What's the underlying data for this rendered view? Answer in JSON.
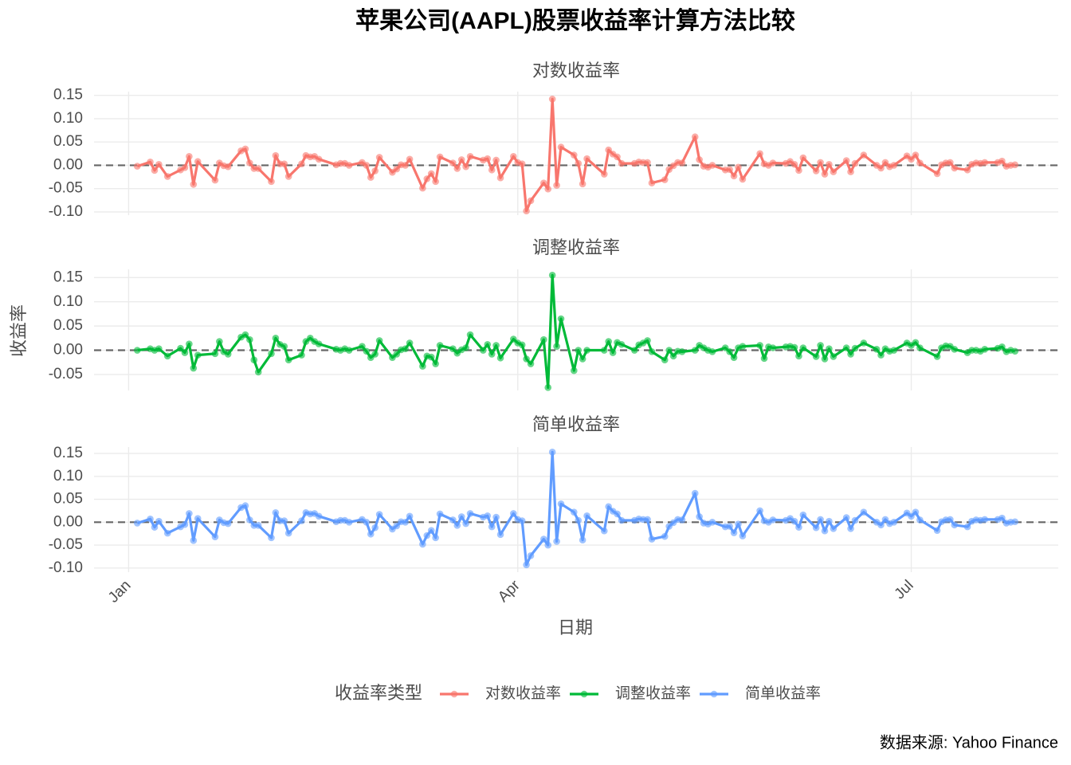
{
  "chart_data": {
    "type": "line",
    "title": "苹果公司(AAPL)股票收益率计算方法比较",
    "x_label": "日期",
    "y_label": "收益率",
    "legend_title": "收益率类型",
    "caption": "数据来源: Yahoo Finance",
    "hline": 0,
    "grid": true,
    "legend": "bottom",
    "facets": true,
    "xlim": [
      "2024-12-24",
      "2025-08-04"
    ],
    "xticks": [
      {
        "value": "2025-01-01",
        "label": "Jan"
      },
      {
        "value": "2025-04-01",
        "label": "Apr"
      },
      {
        "value": "2025-07-01",
        "label": "Jul"
      }
    ],
    "x": [
      "2025-01-03",
      "2025-01-06",
      "2025-01-07",
      "2025-01-08",
      "2025-01-10",
      "2025-01-13",
      "2025-01-14",
      "2025-01-15",
      "2025-01-16",
      "2025-01-17",
      "2025-01-21",
      "2025-01-22",
      "2025-01-23",
      "2025-01-24",
      "2025-01-27",
      "2025-01-28",
      "2025-01-29",
      "2025-01-30",
      "2025-01-31",
      "2025-02-03",
      "2025-02-04",
      "2025-02-05",
      "2025-02-06",
      "2025-02-07",
      "2025-02-10",
      "2025-02-11",
      "2025-02-12",
      "2025-02-13",
      "2025-02-14",
      "2025-02-18",
      "2025-02-19",
      "2025-02-20",
      "2025-02-21",
      "2025-02-24",
      "2025-02-25",
      "2025-02-26",
      "2025-02-27",
      "2025-02-28",
      "2025-03-03",
      "2025-03-04",
      "2025-03-05",
      "2025-03-06",
      "2025-03-07",
      "2025-03-10",
      "2025-03-11",
      "2025-03-12",
      "2025-03-13",
      "2025-03-14",
      "2025-03-17",
      "2025-03-18",
      "2025-03-19",
      "2025-03-20",
      "2025-03-21",
      "2025-03-24",
      "2025-03-25",
      "2025-03-26",
      "2025-03-27",
      "2025-03-28",
      "2025-03-31",
      "2025-04-01",
      "2025-04-02",
      "2025-04-03",
      "2025-04-04",
      "2025-04-07",
      "2025-04-08",
      "2025-04-09",
      "2025-04-10",
      "2025-04-11",
      "2025-04-14",
      "2025-04-15",
      "2025-04-16",
      "2025-04-17",
      "2025-04-21",
      "2025-04-22",
      "2025-04-23",
      "2025-04-24",
      "2025-04-25",
      "2025-04-28",
      "2025-04-29",
      "2025-04-30",
      "2025-05-01",
      "2025-05-02",
      "2025-05-05",
      "2025-05-06",
      "2025-05-07",
      "2025-05-08",
      "2025-05-09",
      "2025-05-12",
      "2025-05-13",
      "2025-05-14",
      "2025-05-15",
      "2025-05-16",
      "2025-05-19",
      "2025-05-20",
      "2025-05-21",
      "2025-05-22",
      "2025-05-23",
      "2025-05-27",
      "2025-05-28",
      "2025-05-29",
      "2025-05-30",
      "2025-06-02",
      "2025-06-03",
      "2025-06-04",
      "2025-06-05",
      "2025-06-06",
      "2025-06-09",
      "2025-06-10",
      "2025-06-11",
      "2025-06-12",
      "2025-06-13",
      "2025-06-16",
      "2025-06-17",
      "2025-06-18",
      "2025-06-20",
      "2025-06-23",
      "2025-06-24",
      "2025-06-25",
      "2025-06-26",
      "2025-06-27",
      "2025-06-30",
      "2025-07-01",
      "2025-07-02",
      "2025-07-03",
      "2025-07-07",
      "2025-07-08",
      "2025-07-09",
      "2025-07-10",
      "2025-07-11",
      "2025-07-14",
      "2025-07-15",
      "2025-07-16",
      "2025-07-17",
      "2025-07-18",
      "2025-07-21",
      "2025-07-22",
      "2025-07-23",
      "2025-07-24",
      "2025-07-25"
    ],
    "series": [
      {
        "name": "对数收益率",
        "color": "#f8766d",
        "ylim": [
          -0.107,
          0.158
        ],
        "yticks": [
          {
            "value": -0.1,
            "label": "-0.10"
          },
          {
            "value": -0.05,
            "label": "-0.05"
          },
          {
            "value": 0,
            "label": "0.00"
          },
          {
            "value": 0.05,
            "label": "0.05"
          },
          {
            "value": 0.1,
            "label": "0.10"
          },
          {
            "value": 0.15,
            "label": "0.15"
          }
        ],
        "values": [
          -0.002,
          0.007,
          -0.011,
          0.002,
          -0.024,
          -0.01,
          -0.005,
          0.019,
          -0.041,
          0.008,
          -0.032,
          0.005,
          -0.001,
          -0.003,
          0.031,
          0.035,
          0.005,
          -0.007,
          -0.007,
          -0.035,
          0.021,
          0.003,
          0.003,
          -0.024,
          0.003,
          0.021,
          0.018,
          0.019,
          0.013,
          0.001,
          0.004,
          0.004,
          0.0,
          0.006,
          0.0,
          -0.026,
          -0.012,
          0.017,
          -0.015,
          -0.008,
          0.001,
          0.0,
          0.013,
          -0.049,
          -0.029,
          -0.018,
          -0.035,
          0.018,
          0.005,
          -0.007,
          0.012,
          -0.003,
          0.019,
          0.011,
          0.014,
          -0.01,
          0.011,
          -0.027,
          0.019,
          0.006,
          0.003,
          -0.098,
          -0.076,
          -0.038,
          -0.051,
          0.142,
          -0.043,
          0.039,
          0.022,
          0.004,
          -0.04,
          0.014,
          -0.019,
          0.033,
          0.024,
          0.018,
          0.004,
          0.004,
          0.007,
          0.006,
          0.006,
          -0.038,
          -0.031,
          -0.009,
          -0.001,
          0.006,
          0.005,
          0.061,
          0.012,
          -0.002,
          -0.004,
          0.0,
          -0.01,
          -0.009,
          -0.023,
          -0.004,
          -0.03,
          0.025,
          0.003,
          0.0,
          0.005,
          0.004,
          0.008,
          0.002,
          -0.011,
          0.016,
          -0.012,
          0.006,
          -0.019,
          0.002,
          -0.014,
          0.01,
          -0.014,
          0.004,
          0.022,
          0.0,
          -0.006,
          0.006,
          -0.003,
          0.0,
          0.02,
          0.013,
          0.022,
          0.005,
          -0.018,
          0.001,
          0.005,
          0.006,
          -0.006,
          -0.01,
          0.002,
          0.005,
          0.004,
          0.006,
          0.006,
          0.009,
          -0.002,
          0.0,
          0.001
        ]
      },
      {
        "name": "调整收益率",
        "color": "#00ba38",
        "ylim": [
          -0.083,
          0.167
        ],
        "yticks": [
          {
            "value": -0.05,
            "label": "-0.05"
          },
          {
            "value": 0,
            "label": "0.00"
          },
          {
            "value": 0.05,
            "label": "0.05"
          },
          {
            "value": 0.1,
            "label": "0.10"
          },
          {
            "value": 0.15,
            "label": "0.15"
          }
        ],
        "values": [
          0.0,
          0.003,
          0.0,
          0.003,
          -0.012,
          0.004,
          -0.005,
          0.013,
          -0.037,
          -0.01,
          -0.007,
          0.018,
          -0.003,
          -0.008,
          0.027,
          0.032,
          0.022,
          -0.02,
          -0.045,
          -0.007,
          0.025,
          0.012,
          0.008,
          -0.02,
          -0.01,
          0.018,
          0.025,
          0.018,
          0.013,
          0.002,
          0.0,
          0.003,
          0.0,
          0.008,
          -0.002,
          -0.015,
          -0.008,
          0.02,
          -0.015,
          -0.008,
          0.001,
          0.003,
          0.015,
          -0.033,
          -0.012,
          -0.014,
          -0.028,
          0.01,
          0.003,
          -0.006,
          0.001,
          0.005,
          0.032,
          0.0,
          0.012,
          -0.008,
          0.01,
          -0.016,
          0.023,
          0.015,
          0.011,
          -0.018,
          -0.028,
          0.022,
          -0.077,
          0.155,
          0.008,
          0.065,
          -0.042,
          0.0,
          -0.018,
          0.0,
          0.0,
          0.018,
          -0.005,
          0.016,
          0.012,
          0.0,
          0.011,
          0.015,
          0.02,
          -0.003,
          -0.02,
          0.0,
          -0.012,
          -0.002,
          -0.003,
          0.0,
          0.01,
          0.005,
          0.0,
          -0.003,
          0.005,
          -0.003,
          -0.015,
          0.005,
          0.008,
          0.01,
          -0.017,
          0.007,
          0.005,
          0.007,
          0.008,
          0.006,
          -0.012,
          0.005,
          -0.013,
          0.01,
          -0.018,
          0.003,
          -0.013,
          0.005,
          -0.008,
          0.004,
          0.015,
          0.002,
          -0.01,
          0.003,
          -0.002,
          0.0,
          0.015,
          0.01,
          0.016,
          0.005,
          -0.013,
          0.005,
          0.009,
          0.008,
          0.002,
          -0.005,
          0.0,
          0.0,
          -0.002,
          0.002,
          0.004,
          0.007,
          -0.003,
          0.0,
          -0.002
        ]
      },
      {
        "name": "简单收益率",
        "color": "#619cff",
        "ylim": [
          -0.109,
          0.164
        ],
        "yticks": [
          {
            "value": -0.1,
            "label": "-0.10"
          },
          {
            "value": -0.05,
            "label": "-0.05"
          },
          {
            "value": 0,
            "label": "0.00"
          },
          {
            "value": 0.05,
            "label": "0.05"
          },
          {
            "value": 0.1,
            "label": "0.10"
          },
          {
            "value": 0.15,
            "label": "0.15"
          }
        ],
        "values": [
          -0.002,
          0.007,
          -0.011,
          0.002,
          -0.024,
          -0.01,
          -0.005,
          0.019,
          -0.04,
          0.008,
          -0.032,
          0.005,
          -0.001,
          -0.003,
          0.032,
          0.036,
          0.005,
          -0.007,
          -0.007,
          -0.034,
          0.021,
          0.003,
          0.003,
          -0.024,
          0.003,
          0.021,
          0.018,
          0.019,
          0.013,
          0.001,
          0.004,
          0.004,
          0.0,
          0.006,
          0.0,
          -0.026,
          -0.012,
          0.017,
          -0.015,
          -0.008,
          0.001,
          0.0,
          0.013,
          -0.048,
          -0.029,
          -0.018,
          -0.034,
          0.018,
          0.005,
          -0.007,
          0.012,
          -0.003,
          0.019,
          0.011,
          0.014,
          -0.01,
          0.011,
          -0.027,
          0.019,
          0.006,
          0.003,
          -0.093,
          -0.073,
          -0.037,
          -0.05,
          0.153,
          -0.042,
          0.04,
          0.022,
          0.004,
          -0.039,
          0.014,
          -0.019,
          0.034,
          0.024,
          0.018,
          0.004,
          0.004,
          0.007,
          0.006,
          0.006,
          -0.037,
          -0.031,
          -0.009,
          -0.001,
          0.006,
          0.005,
          0.063,
          0.012,
          -0.002,
          -0.004,
          0.0,
          -0.01,
          -0.009,
          -0.023,
          -0.004,
          -0.03,
          0.025,
          0.003,
          0.0,
          0.005,
          0.004,
          0.008,
          0.002,
          -0.011,
          0.016,
          -0.012,
          0.006,
          -0.019,
          0.002,
          -0.014,
          0.01,
          -0.014,
          0.004,
          0.022,
          0.0,
          -0.006,
          0.006,
          -0.003,
          0.0,
          0.02,
          0.013,
          0.022,
          0.005,
          -0.018,
          0.001,
          0.005,
          0.006,
          -0.006,
          -0.01,
          0.002,
          0.005,
          0.004,
          0.006,
          0.006,
          0.009,
          -0.002,
          0.0,
          0.001
        ]
      }
    ]
  }
}
